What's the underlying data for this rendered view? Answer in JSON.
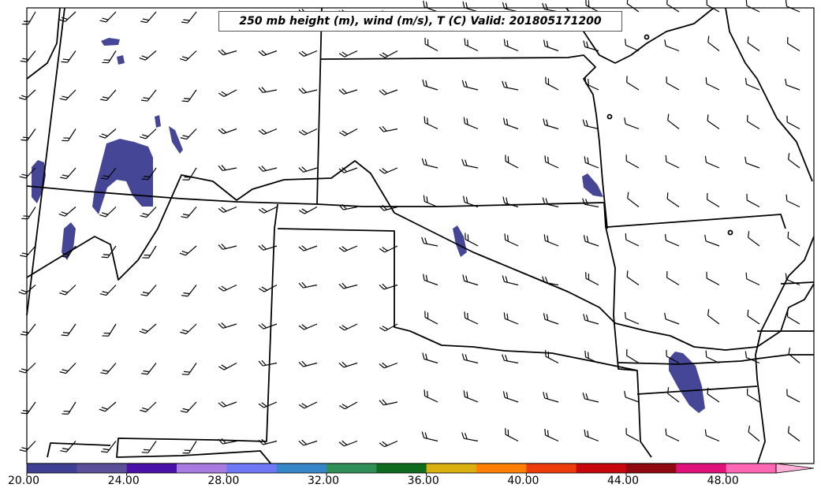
{
  "map": {
    "title": "250 mb height (m), wind (m/s), T (C) Valid: 201805171200",
    "colorbar": {
      "tick_labels": [
        "20.00",
        "24.00",
        "28.00",
        "32.00",
        "36.00",
        "40.00",
        "44.00",
        "48.00"
      ],
      "colors": [
        "#3f3f93",
        "#5c4f9a",
        "#4a10a8",
        "#a77be0",
        "#6e78f5",
        "#3585c9",
        "#2f8f57",
        "#0e6a1c",
        "#d9b00f",
        "#ff8000",
        "#ee3b0c",
        "#c8070c",
        "#8e0a10",
        "#e0107a",
        "#ff66b4",
        "#ffaed6"
      ]
    },
    "temperature_blob_color": "#464696",
    "line_color": "#000000"
  }
}
